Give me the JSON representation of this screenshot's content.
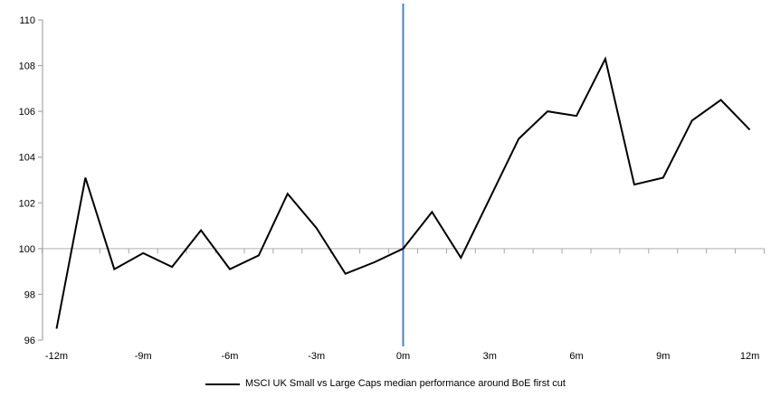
{
  "chart_data": {
    "type": "line",
    "title": "",
    "x": [
      -12,
      -11,
      -10,
      -9,
      -8,
      -7,
      -6,
      -5,
      -4,
      -3,
      -2,
      -1,
      0,
      1,
      2,
      3,
      4,
      5,
      6,
      7,
      8,
      9,
      10,
      11,
      12
    ],
    "series": [
      {
        "name": "MSCI UK Small vs Large Caps median performance around BoE first cut",
        "values": [
          96.5,
          103.1,
          99.1,
          99.8,
          99.2,
          100.8,
          99.1,
          99.7,
          102.4,
          100.9,
          98.9,
          99.4,
          100.0,
          101.6,
          99.6,
          102.2,
          104.8,
          106.0,
          105.8,
          108.3,
          102.8,
          103.1,
          105.6,
          106.5,
          105.2
        ]
      }
    ],
    "xlabel": "",
    "ylabel": "",
    "ylim": [
      96,
      110
    ],
    "yticks": [
      96,
      98,
      100,
      102,
      104,
      106,
      108,
      110
    ],
    "xticks": [
      {
        "value": -12,
        "label": "-12m"
      },
      {
        "value": -9,
        "label": "-9m"
      },
      {
        "value": -6,
        "label": "-6m"
      },
      {
        "value": -3,
        "label": "-3m"
      },
      {
        "value": 0,
        "label": "0m"
      },
      {
        "value": 3,
        "label": "3m"
      },
      {
        "value": 6,
        "label": "6m"
      },
      {
        "value": 9,
        "label": "9m"
      },
      {
        "value": 12,
        "label": "12m"
      }
    ],
    "baseline_value": 100,
    "event_line_x": 0,
    "grid": "off",
    "legend_position": "bottom-center",
    "colors": {
      "series": "#000000",
      "event_line": "#4F81BD",
      "baseline": "#BFBFBF",
      "axis": "#A6A6A6",
      "labels": "#000000",
      "background": "#FFFFFF"
    }
  }
}
